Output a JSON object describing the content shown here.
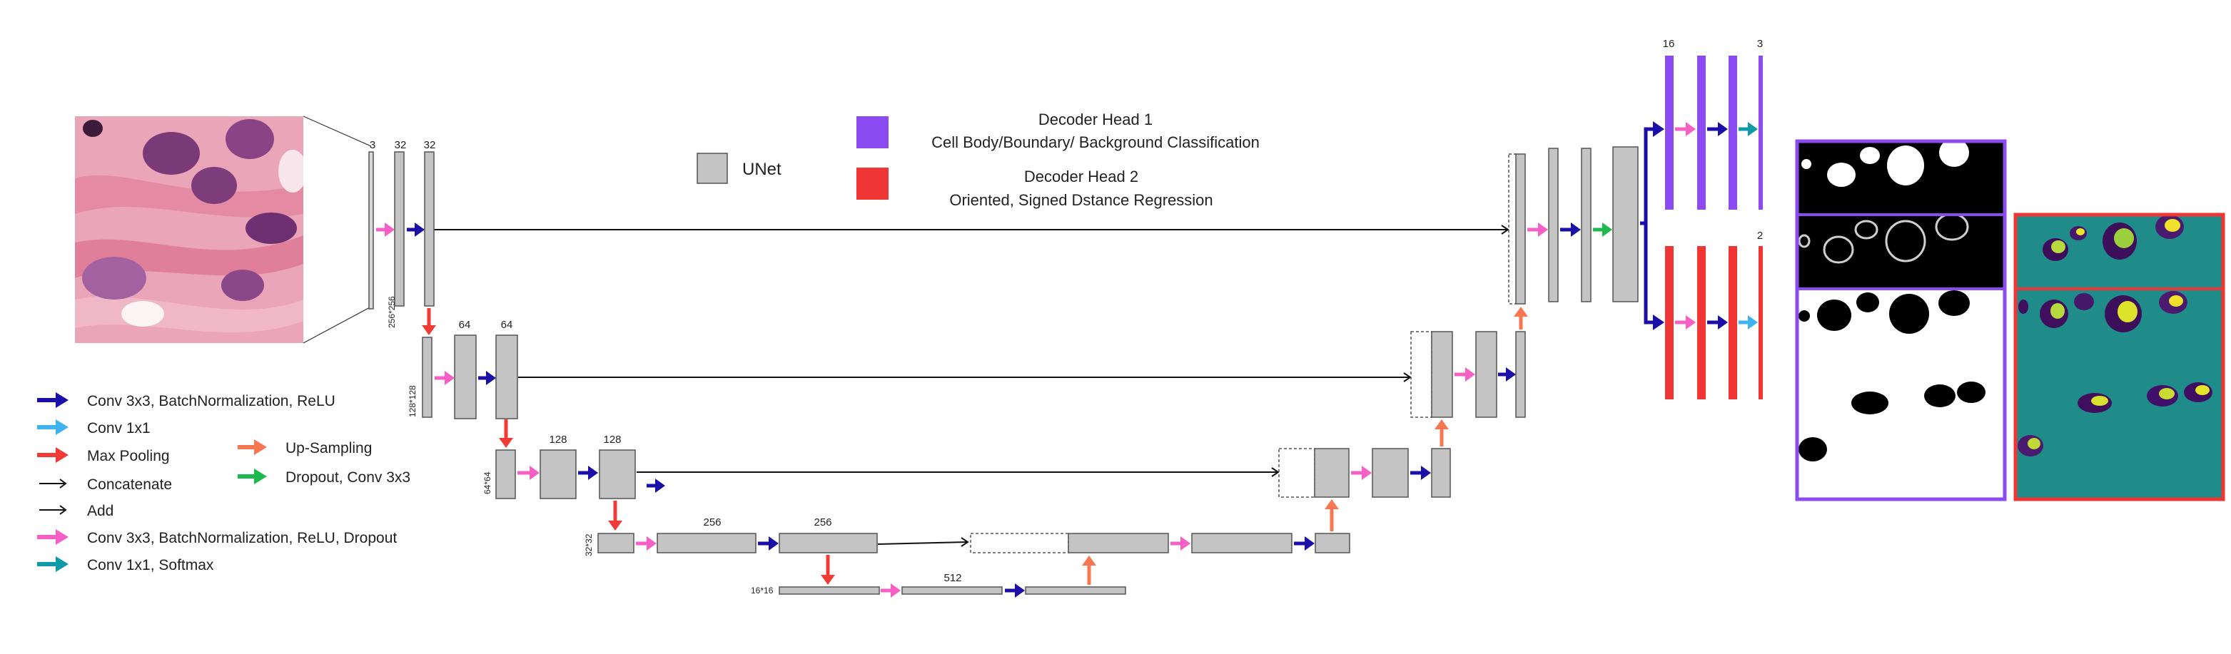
{
  "colors": {
    "block_fill": "#c4c4c4",
    "block_stroke": "#555555",
    "conv_arrow": "#1b0fa8",
    "conv1x1_arrow": "#3fb3f0",
    "maxpool_arrow": "#f03b36",
    "upsample_arrow": "#f87752",
    "dropout_arrow": "#1db94f",
    "conv_dropout_arrow": "#f660c4",
    "softmax_arrow": "#0f9aa8",
    "head1": "#8a4cf0",
    "head2": "#f03535",
    "teal_bg": "#1f8c8a"
  },
  "legend_top": {
    "unet_label": "UNet",
    "head1_title": "Decoder Head 1",
    "head1_desc": "Cell Body/Boundary/ Background Classification",
    "head2_title": "Decoder Head 2",
    "head2_desc": "Oriented, Signed Dstance Regression"
  },
  "legend_bottom": {
    "items": [
      {
        "label": "Conv 3x3, BatchNormalization, ReLU",
        "icon": "right-arrow-icon"
      },
      {
        "label": "Conv 1x1",
        "icon": "right-arrow-icon"
      },
      {
        "label": "Max Pooling",
        "icon": "right-arrow-icon"
      },
      {
        "label": "Concatenate",
        "icon": "thin-arrow-icon"
      },
      {
        "label": "Add",
        "icon": "thin-arrow-icon"
      },
      {
        "label": "Conv 3x3, BatchNormalization, ReLU, Dropout",
        "icon": "right-arrow-icon"
      },
      {
        "label": "Conv 1x1, Softmax",
        "icon": "right-arrow-icon"
      },
      {
        "label": "Up-Sampling",
        "icon": "right-arrow-icon"
      },
      {
        "label": "Dropout, Conv 3x3",
        "icon": "right-arrow-icon"
      }
    ]
  },
  "network": {
    "channels_3": "3",
    "channels_32a": "32",
    "channels_32b": "32",
    "channels_64a": "64",
    "channels_64b": "64",
    "channels_128a": "128",
    "channels_128b": "128",
    "channels_256a": "256",
    "channels_256b": "256",
    "channels_512": "512",
    "size_256": "256*256",
    "size_128": "128*128",
    "size_64": "64*64",
    "size_32": "32*32",
    "size_16": "16*16",
    "head_16": "16",
    "head_3": "3",
    "head_2": "2"
  }
}
